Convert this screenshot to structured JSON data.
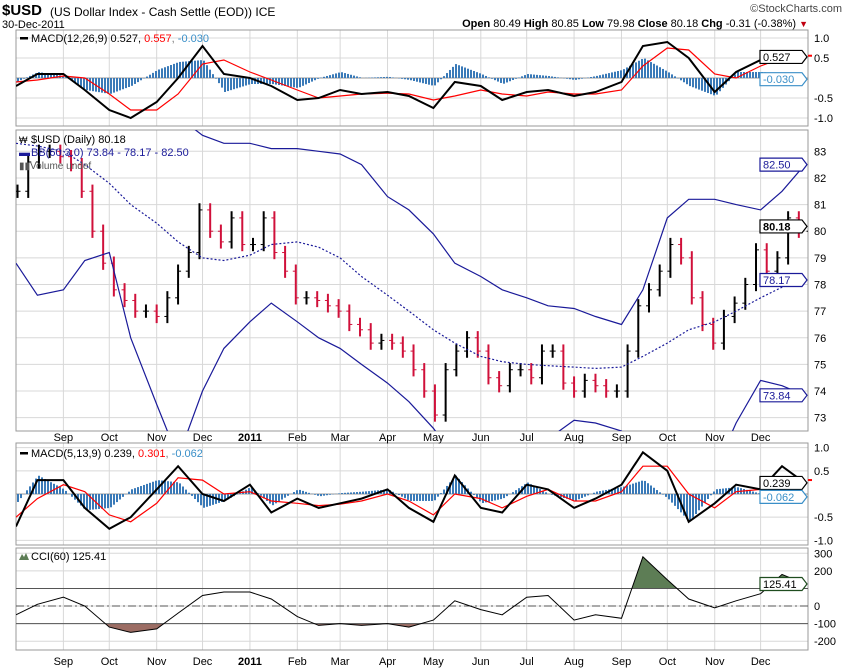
{
  "header": {
    "symbol": "$USD",
    "description": "(US Dollar Index - Cash Settle (EOD)) ICE",
    "date": "30-Dec-2011",
    "brand": "©StockCharts.com",
    "open_label": "Open",
    "open": "80.49",
    "high_label": "High",
    "high": "80.85",
    "low_label": "Low",
    "low": "79.98",
    "close_label": "Close",
    "close": "80.18",
    "chg_label": "Chg",
    "chg": "-0.31 (-0.38%)",
    "chg_arrow": "▼"
  },
  "colors": {
    "up": "#000000",
    "down": "#d0103a",
    "band": "#1a1a99",
    "signal": "#ff0000",
    "histogram": "#3a7ab8",
    "cci_pos": "#5d7d55",
    "cci_neg": "#9c6d64",
    "grid": "#d8d8d8"
  },
  "x_axis": {
    "labels": [
      {
        "text": "Sep",
        "date": "2010-09-01"
      },
      {
        "text": "Oct",
        "date": "2010-10-01"
      },
      {
        "text": "Nov",
        "date": "2010-11-01"
      },
      {
        "text": "Dec",
        "date": "2010-12-01"
      },
      {
        "text": "2011",
        "date": "2011-01-01",
        "bold": true
      },
      {
        "text": "Feb",
        "date": "2011-02-01"
      },
      {
        "text": "Mar",
        "date": "2011-03-01"
      },
      {
        "text": "Apr",
        "date": "2011-04-01"
      },
      {
        "text": "May",
        "date": "2011-05-01"
      },
      {
        "text": "Jun",
        "date": "2011-06-01"
      },
      {
        "text": "Jul",
        "date": "2011-07-01"
      },
      {
        "text": "Aug",
        "date": "2011-08-01"
      },
      {
        "text": "Sep",
        "date": "2011-09-01"
      },
      {
        "text": "Oct",
        "date": "2011-10-01"
      },
      {
        "text": "Nov",
        "date": "2011-11-01"
      },
      {
        "text": "Dec",
        "date": "2011-12-01"
      }
    ],
    "range": [
      "2010-08-01",
      "2012-01-01"
    ]
  },
  "chart_data": [
    {
      "type": "line",
      "name_label": "MACD(12,26,9)",
      "legend_values": [
        "0.527",
        "0.557",
        "-0.030"
      ],
      "ylim": [
        -1.2,
        1.2
      ],
      "yticks": [
        "1.0",
        "0.5",
        "-0.5",
        "-1.0"
      ],
      "ytick_values": [
        1.0,
        0.5,
        -0.5,
        -1.0
      ],
      "value_boxes": [
        {
          "text": "0.527",
          "value": 0.527,
          "kind": "macd"
        },
        {
          "text": "-0.030",
          "value": -0.03,
          "kind": "hist"
        }
      ],
      "dates": [
        "2010-08-01",
        "2010-08-15",
        "2010-09-01",
        "2010-09-15",
        "2010-10-01",
        "2010-10-15",
        "2010-11-01",
        "2010-11-15",
        "2010-12-01",
        "2010-12-15",
        "2011-01-01",
        "2011-01-15",
        "2011-02-01",
        "2011-02-15",
        "2011-03-01",
        "2011-03-15",
        "2011-04-01",
        "2011-04-15",
        "2011-05-01",
        "2011-05-15",
        "2011-06-01",
        "2011-06-15",
        "2011-07-01",
        "2011-07-15",
        "2011-08-01",
        "2011-08-15",
        "2011-09-01",
        "2011-09-15",
        "2011-10-01",
        "2011-10-15",
        "2011-11-01",
        "2011-11-15",
        "2011-12-01",
        "2011-12-15",
        "2011-12-30"
      ],
      "macd": [
        -0.2,
        0.1,
        0.1,
        -0.3,
        -0.8,
        -1.0,
        -0.6,
        0.0,
        0.8,
        0.1,
        0.0,
        -0.2,
        -0.55,
        -0.5,
        -0.3,
        -0.4,
        -0.35,
        -0.45,
        -0.75,
        -0.1,
        -0.2,
        -0.55,
        -0.35,
        -0.3,
        -0.45,
        -0.35,
        -0.1,
        0.8,
        0.9,
        0.5,
        -0.35,
        0.15,
        0.45,
        0.6,
        0.527
      ],
      "signal": [
        -0.1,
        -0.05,
        0.05,
        0.0,
        -0.4,
        -0.8,
        -0.8,
        -0.4,
        0.35,
        0.45,
        0.15,
        -0.05,
        -0.3,
        -0.5,
        -0.45,
        -0.4,
        -0.38,
        -0.4,
        -0.55,
        -0.45,
        -0.3,
        -0.4,
        -0.45,
        -0.35,
        -0.4,
        -0.4,
        -0.3,
        0.3,
        0.75,
        0.7,
        0.1,
        0.0,
        0.3,
        0.5,
        0.557
      ],
      "histogram": [
        -0.1,
        0.15,
        0.05,
        -0.3,
        -0.4,
        -0.2,
        0.2,
        0.4,
        0.45,
        -0.35,
        -0.15,
        -0.15,
        -0.25,
        0.0,
        0.15,
        0.0,
        0.03,
        -0.05,
        -0.2,
        0.35,
        0.1,
        -0.15,
        0.1,
        0.05,
        -0.05,
        0.05,
        0.2,
        0.5,
        0.15,
        -0.2,
        -0.45,
        0.15,
        0.15,
        0.1,
        -0.03
      ]
    },
    {
      "type": "bar",
      "name_label": "$USD (Daily) 80.18",
      "bb_label": "BB(60,3.0) 73.84 - 78.17 - 82.50",
      "volume_label": "Volume undef",
      "ylim": [
        72.5,
        83.8
      ],
      "yticks": [
        "73",
        "74",
        "75",
        "76",
        "77",
        "78",
        "79",
        "80",
        "81",
        "82",
        "83"
      ],
      "ytick_values": [
        73,
        74,
        75,
        76,
        77,
        78,
        79,
        80,
        81,
        82,
        83
      ],
      "value_boxes": [
        {
          "text": "82.50",
          "value": 82.5,
          "kind": "band"
        },
        {
          "text": "80.18",
          "value": 80.18,
          "kind": "price"
        },
        {
          "text": "78.17",
          "value": 78.17,
          "kind": "band"
        },
        {
          "text": "73.84",
          "value": 73.84,
          "kind": "band"
        }
      ],
      "weekly_start": "2010-08-02",
      "weekly_interval_days": 7,
      "weekly_close": [
        81.5,
        82.6,
        83,
        83,
        82.8,
        82.5,
        81.5,
        80,
        78.8,
        77.8,
        77.4,
        77,
        77,
        76.8,
        77.5,
        78.5,
        79.2,
        80.8,
        80,
        79.6,
        80.5,
        79.5,
        79.5,
        80.5,
        79.2,
        78.5,
        77.5,
        77.5,
        77.4,
        77.2,
        77,
        76.5,
        76.3,
        75.8,
        75.9,
        75.8,
        75.5,
        74.8,
        74,
        73.1,
        74.8,
        75.5,
        76,
        75.5,
        74.5,
        74.2,
        74.8,
        74.8,
        74.5,
        75.5,
        75.5,
        74.3,
        74,
        74.4,
        74.2,
        74,
        74,
        75.5,
        77.2,
        77.8,
        78.5,
        79.5,
        79,
        77.5,
        76.5,
        75.8,
        76.8,
        77.3,
        78,
        79.3,
        78.5,
        79,
        80.5,
        80,
        80.18
      ],
      "band_dates": [
        "2010-08-01",
        "2010-08-15",
        "2010-09-01",
        "2010-09-15",
        "2010-10-01",
        "2010-10-15",
        "2010-11-01",
        "2010-11-15",
        "2010-12-01",
        "2010-12-15",
        "2011-01-01",
        "2011-01-15",
        "2011-02-01",
        "2011-02-15",
        "2011-03-01",
        "2011-03-15",
        "2011-04-01",
        "2011-04-15",
        "2011-05-01",
        "2011-05-15",
        "2011-06-01",
        "2011-06-15",
        "2011-07-01",
        "2011-07-15",
        "2011-08-01",
        "2011-08-15",
        "2011-09-01",
        "2011-09-15",
        "2011-10-01",
        "2011-10-15",
        "2011-11-01",
        "2011-11-15",
        "2011-12-01",
        "2011-12-15",
        "2011-12-30"
      ],
      "upper_band": [
        84.5,
        85,
        85.5,
        85.5,
        85.5,
        85,
        84.8,
        84.3,
        83.6,
        83.3,
        83.3,
        83.1,
        83.1,
        83.0,
        82.9,
        82.5,
        81.3,
        80.8,
        79.9,
        78.8,
        78.3,
        77.8,
        77.5,
        77.2,
        77.1,
        76.8,
        76.5,
        77.8,
        80.5,
        81.2,
        81.2,
        81.0,
        80.8,
        81.5,
        82.5
      ],
      "middle_band": [
        83.3,
        83.2,
        83.0,
        82.5,
        81.8,
        81.0,
        80.3,
        79.6,
        79.0,
        78.9,
        79.1,
        79.5,
        79.6,
        79.4,
        79.0,
        78.3,
        77.6,
        77.0,
        76.3,
        75.8,
        75.3,
        75.1,
        75.0,
        74.95,
        74.9,
        74.85,
        74.9,
        75.3,
        75.8,
        76.3,
        76.6,
        77.0,
        77.5,
        77.9,
        78.17
      ],
      "lower_band": [
        78.8,
        77.6,
        77.8,
        78.9,
        79.2,
        76.0,
        73.5,
        71.5,
        74.0,
        75.6,
        76.6,
        77.3,
        76.6,
        76.0,
        75.6,
        75.0,
        74.3,
        73.6,
        72.6,
        71.5,
        71.0,
        71.0,
        71.3,
        72.2,
        72.9,
        72.8,
        72.5,
        71.5,
        70.8,
        70.8,
        71.0,
        72.8,
        74.4,
        74.2,
        73.84
      ]
    },
    {
      "type": "line",
      "name_label": "MACD(5,13,9)",
      "legend_values": [
        "0.239",
        "0.301",
        "-0.062"
      ],
      "ylim": [
        -1.1,
        1.1
      ],
      "yticks": [
        "1.0",
        "0.5",
        "-0.5",
        "-1.0"
      ],
      "ytick_values": [
        1.0,
        0.5,
        -0.5,
        -1.0
      ],
      "value_boxes": [
        {
          "text": "0.239",
          "value": 0.239,
          "kind": "macd"
        },
        {
          "text": "-0.062",
          "value": -0.062,
          "kind": "hist"
        }
      ],
      "macd": [
        -0.7,
        0.3,
        0.3,
        -0.3,
        -0.75,
        -0.5,
        0.1,
        0.6,
        0.0,
        -0.15,
        0.2,
        -0.4,
        -0.1,
        -0.3,
        -0.2,
        -0.1,
        0.1,
        -0.3,
        -0.6,
        0.4,
        -0.3,
        -0.4,
        0.2,
        0.1,
        -0.3,
        -0.1,
        0.2,
        0.9,
        0.5,
        -0.6,
        -0.2,
        0.2,
        0.1,
        0.6,
        0.239
      ],
      "signal": [
        -0.5,
        -0.1,
        0.2,
        0.05,
        -0.45,
        -0.6,
        -0.2,
        0.35,
        0.3,
        0.0,
        0.05,
        -0.15,
        -0.2,
        -0.25,
        -0.22,
        -0.15,
        0.0,
        -0.15,
        -0.45,
        0.0,
        -0.1,
        -0.3,
        -0.05,
        0.1,
        -0.15,
        -0.15,
        0.05,
        0.6,
        0.6,
        0.0,
        -0.3,
        0.05,
        0.1,
        0.35,
        0.301
      ],
      "histogram": [
        -0.2,
        0.4,
        0.1,
        -0.35,
        -0.3,
        0.1,
        0.3,
        0.25,
        -0.3,
        -0.15,
        0.15,
        -0.25,
        0.1,
        -0.05,
        0.02,
        0.05,
        0.1,
        -0.15,
        -0.15,
        0.4,
        -0.2,
        -0.1,
        0.25,
        0.0,
        -0.15,
        0.05,
        0.15,
        0.3,
        -0.1,
        -0.6,
        0.1,
        0.15,
        0.0,
        0.25,
        -0.062
      ]
    },
    {
      "type": "area",
      "name_label": "CCI(60) 125.41",
      "ylim": [
        -250,
        330
      ],
      "yticks": [
        "300",
        "200",
        "0",
        "-100",
        "-200"
      ],
      "ytick_values": [
        300,
        200,
        0,
        -100,
        -200
      ],
      "value_boxes": [
        {
          "text": "125.41",
          "value": 125.41,
          "kind": "cci"
        }
      ],
      "reference_lines": [
        100,
        0,
        -100
      ],
      "values": [
        -50,
        10,
        50,
        0,
        -120,
        -150,
        -130,
        -40,
        60,
        80,
        80,
        40,
        -60,
        -110,
        -100,
        -110,
        -100,
        -120,
        -80,
        30,
        -20,
        -50,
        50,
        60,
        -80,
        -50,
        -70,
        280,
        150,
        40,
        -10,
        30,
        70,
        180,
        125.41
      ]
    }
  ]
}
